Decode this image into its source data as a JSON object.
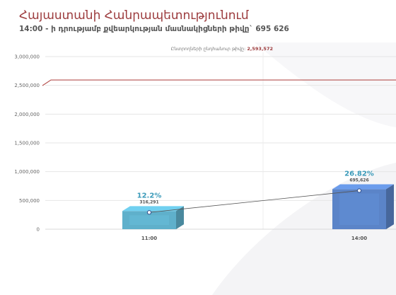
{
  "header": {
    "title": "Հայաստանի Հանրապետությունում",
    "subtitle": "14:00 - ի դրությամբ քվեարկության մասնակիցների թիվը` 695 626"
  },
  "chart_data": {
    "type": "bar",
    "title": "Հայաստանի Հանրապետությունում",
    "subtitle": "14:00 - ի դրությամբ քվեարկության մասնակիցների թիվը` 695 626",
    "categories": [
      "11:00",
      "14:00"
    ],
    "series": [
      {
        "values": [
          316291,
          695626
        ],
        "value_labels": [
          "316,291",
          "695,626"
        ],
        "percent_labels": [
          "12.2%",
          "26.82%"
        ],
        "colors": [
          "#5fb0cb",
          "#5b84c8"
        ],
        "percent_colors": [
          "#3a9ab9",
          "#3a9ab9"
        ]
      }
    ],
    "reference_line": {
      "label": "Ընտրողների ընդհանուր թիվը:",
      "value": 2593572,
      "value_label": "2,593,572",
      "color": "#b5524f"
    },
    "ylim": [
      0,
      3000000
    ],
    "yticks": [
      0,
      500000,
      1000000,
      1500000,
      2000000,
      2500000,
      3000000
    ],
    "ytick_labels": [
      "0",
      "500,000",
      "1,000,000",
      "1,500,000",
      "2,000,000",
      "2,500,000",
      "3,000,000"
    ],
    "grid": true,
    "xlabel": "",
    "ylabel": ""
  }
}
